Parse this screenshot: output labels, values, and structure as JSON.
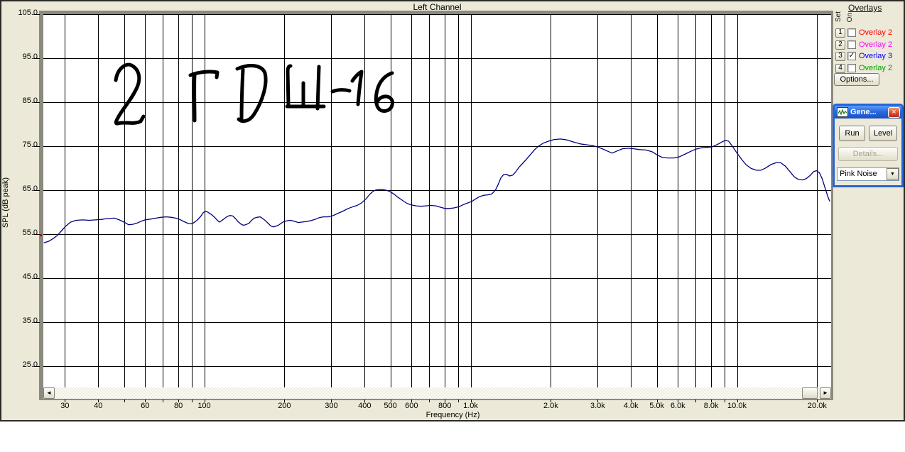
{
  "chart_data": {
    "type": "line",
    "title": "Left Channel",
    "xlabel": "Frequency (Hz)",
    "ylabel": "SPL (dB peak)",
    "x_scale": "log",
    "x_range_hz": [
      25,
      22500
    ],
    "y_visible_range_db": [
      20,
      105
    ],
    "grid": true,
    "y_ticks": [
      {
        "db": 105,
        "label": "105.0"
      },
      {
        "db": 95,
        "label": "95.0"
      },
      {
        "db": 85,
        "label": "85.0"
      },
      {
        "db": 75,
        "label": "75.0"
      },
      {
        "db": 65,
        "label": "65.0"
      },
      {
        "db": 55,
        "label": "55.0"
      },
      {
        "db": 45,
        "label": "45.0"
      },
      {
        "db": 35,
        "label": "35.0"
      },
      {
        "db": 25,
        "label": "25.0"
      }
    ],
    "grid_freqs_hz": [
      30,
      40,
      50,
      60,
      70,
      80,
      90,
      100,
      200,
      300,
      400,
      500,
      600,
      700,
      800,
      900,
      1000,
      2000,
      3000,
      4000,
      5000,
      6000,
      7000,
      8000,
      9000,
      10000,
      20000
    ],
    "x_tick_labels": [
      {
        "hz": 30,
        "label": "30"
      },
      {
        "hz": 40,
        "label": "40"
      },
      {
        "hz": 60,
        "label": "60"
      },
      {
        "hz": 80,
        "label": "80"
      },
      {
        "hz": 100,
        "label": "100"
      },
      {
        "hz": 200,
        "label": "200"
      },
      {
        "hz": 300,
        "label": "300"
      },
      {
        "hz": 400,
        "label": "400"
      },
      {
        "hz": 500,
        "label": "500"
      },
      {
        "hz": 600,
        "label": "600"
      },
      {
        "hz": 800,
        "label": "800"
      },
      {
        "hz": 1000,
        "label": "1.0k"
      },
      {
        "hz": 2000,
        "label": "2.0k"
      },
      {
        "hz": 3000,
        "label": "3.0k"
      },
      {
        "hz": 4000,
        "label": "4.0k"
      },
      {
        "hz": 5000,
        "label": "5.0k"
      },
      {
        "hz": 6000,
        "label": "6.0k"
      },
      {
        "hz": 8000,
        "label": "8.0k"
      },
      {
        "hz": 10000,
        "label": "10.0k"
      },
      {
        "hz": 20000,
        "label": "20.0k"
      }
    ],
    "annotation": {
      "text": "2 ГДШ-16"
    },
    "series": [
      {
        "name": "Left Channel (Overlay 3)",
        "color": "#000080",
        "points_hz_db": [
          [
            25,
            53.0
          ],
          [
            26,
            53.3
          ],
          [
            27,
            53.9
          ],
          [
            28,
            54.6
          ],
          [
            29,
            55.6
          ],
          [
            30,
            56.6
          ],
          [
            31.5,
            57.7
          ],
          [
            33,
            58.1
          ],
          [
            35,
            58.2
          ],
          [
            37,
            58.1
          ],
          [
            39,
            58.2
          ],
          [
            41,
            58.3
          ],
          [
            43,
            58.5
          ],
          [
            46,
            58.6
          ],
          [
            48,
            58.2
          ],
          [
            50,
            57.7
          ],
          [
            52,
            57.1
          ],
          [
            54,
            57.2
          ],
          [
            56,
            57.5
          ],
          [
            58,
            57.9
          ],
          [
            60,
            58.2
          ],
          [
            63,
            58.4
          ],
          [
            66,
            58.6
          ],
          [
            69,
            58.8
          ],
          [
            72,
            58.9
          ],
          [
            75,
            58.8
          ],
          [
            78,
            58.6
          ],
          [
            81,
            58.3
          ],
          [
            84,
            57.8
          ],
          [
            87,
            57.4
          ],
          [
            89,
            57.3
          ],
          [
            91,
            57.5
          ],
          [
            94,
            58.1
          ],
          [
            97,
            59.0
          ],
          [
            99,
            59.8
          ],
          [
            101,
            60.2
          ],
          [
            103,
            60.0
          ],
          [
            106,
            59.5
          ],
          [
            109,
            58.9
          ],
          [
            112,
            58.1
          ],
          [
            114,
            57.7
          ],
          [
            116,
            58.0
          ],
          [
            119,
            58.5
          ],
          [
            122,
            59.0
          ],
          [
            125,
            59.2
          ],
          [
            128,
            59.1
          ],
          [
            131,
            58.5
          ],
          [
            134,
            57.8
          ],
          [
            137,
            57.3
          ],
          [
            140,
            57.0
          ],
          [
            143,
            57.1
          ],
          [
            147,
            57.4
          ],
          [
            150,
            58.0
          ],
          [
            154,
            58.6
          ],
          [
            158,
            58.8
          ],
          [
            162,
            58.9
          ],
          [
            166,
            58.5
          ],
          [
            170,
            58.0
          ],
          [
            174,
            57.4
          ],
          [
            178,
            56.8
          ],
          [
            182,
            56.6
          ],
          [
            186,
            56.8
          ],
          [
            190,
            57.0
          ],
          [
            195,
            57.5
          ],
          [
            200,
            57.9
          ],
          [
            205,
            58.0
          ],
          [
            210,
            58.1
          ],
          [
            215,
            58.0
          ],
          [
            220,
            57.8
          ],
          [
            226,
            57.6
          ],
          [
            232,
            57.7
          ],
          [
            240,
            57.8
          ],
          [
            250,
            58.0
          ],
          [
            260,
            58.3
          ],
          [
            270,
            58.7
          ],
          [
            280,
            58.9
          ],
          [
            292,
            58.9
          ],
          [
            305,
            59.2
          ],
          [
            318,
            59.7
          ],
          [
            332,
            60.2
          ],
          [
            347,
            60.8
          ],
          [
            362,
            61.2
          ],
          [
            375,
            61.5
          ],
          [
            390,
            62.1
          ],
          [
            405,
            63.0
          ],
          [
            418,
            64.0
          ],
          [
            430,
            64.7
          ],
          [
            440,
            65.0
          ],
          [
            455,
            65.1
          ],
          [
            470,
            65.1
          ],
          [
            485,
            64.9
          ],
          [
            500,
            64.6
          ],
          [
            515,
            64.1
          ],
          [
            532,
            63.4
          ],
          [
            550,
            62.8
          ],
          [
            565,
            62.3
          ],
          [
            580,
            61.9
          ],
          [
            600,
            61.6
          ],
          [
            625,
            61.4
          ],
          [
            650,
            61.3
          ],
          [
            680,
            61.4
          ],
          [
            710,
            61.5
          ],
          [
            740,
            61.4
          ],
          [
            770,
            61.1
          ],
          [
            800,
            60.8
          ],
          [
            830,
            60.8
          ],
          [
            860,
            60.9
          ],
          [
            890,
            61.1
          ],
          [
            920,
            61.4
          ],
          [
            950,
            61.8
          ],
          [
            980,
            62.1
          ],
          [
            1010,
            62.4
          ],
          [
            1045,
            63.0
          ],
          [
            1080,
            63.5
          ],
          [
            1120,
            63.8
          ],
          [
            1160,
            63.9
          ],
          [
            1200,
            64.1
          ],
          [
            1240,
            65.0
          ],
          [
            1270,
            66.3
          ],
          [
            1300,
            67.8
          ],
          [
            1330,
            68.5
          ],
          [
            1360,
            68.6
          ],
          [
            1400,
            68.2
          ],
          [
            1440,
            68.4
          ],
          [
            1480,
            69.2
          ],
          [
            1520,
            70.2
          ],
          [
            1570,
            71.1
          ],
          [
            1620,
            72.0
          ],
          [
            1680,
            73.1
          ],
          [
            1740,
            74.2
          ],
          [
            1800,
            75.0
          ],
          [
            1880,
            75.7
          ],
          [
            1960,
            76.1
          ],
          [
            2060,
            76.5
          ],
          [
            2180,
            76.6
          ],
          [
            2300,
            76.4
          ],
          [
            2440,
            75.9
          ],
          [
            2580,
            75.5
          ],
          [
            2720,
            75.3
          ],
          [
            2870,
            75.1
          ],
          [
            3000,
            74.8
          ],
          [
            3120,
            74.4
          ],
          [
            3250,
            73.9
          ],
          [
            3400,
            73.4
          ],
          [
            3550,
            73.9
          ],
          [
            3720,
            74.4
          ],
          [
            3900,
            74.5
          ],
          [
            4100,
            74.4
          ],
          [
            4300,
            74.2
          ],
          [
            4550,
            74.1
          ],
          [
            4800,
            73.7
          ],
          [
            5050,
            72.9
          ],
          [
            5250,
            72.4
          ],
          [
            5500,
            72.3
          ],
          [
            5800,
            72.3
          ],
          [
            6100,
            72.6
          ],
          [
            6400,
            73.2
          ],
          [
            6700,
            73.8
          ],
          [
            7000,
            74.3
          ],
          [
            7350,
            74.6
          ],
          [
            7700,
            74.7
          ],
          [
            8050,
            74.8
          ],
          [
            8400,
            75.3
          ],
          [
            8750,
            75.9
          ],
          [
            9050,
            76.3
          ],
          [
            9300,
            76.1
          ],
          [
            9600,
            75.0
          ],
          [
            10000,
            73.4
          ],
          [
            10400,
            72.0
          ],
          [
            10800,
            70.8
          ],
          [
            11300,
            69.9
          ],
          [
            11800,
            69.5
          ],
          [
            12300,
            69.5
          ],
          [
            12800,
            70.0
          ],
          [
            13400,
            70.8
          ],
          [
            14000,
            71.2
          ],
          [
            14600,
            71.2
          ],
          [
            15200,
            70.4
          ],
          [
            15800,
            69.2
          ],
          [
            16400,
            68.0
          ],
          [
            17000,
            67.4
          ],
          [
            17600,
            67.3
          ],
          [
            18200,
            67.6
          ],
          [
            18800,
            68.3
          ],
          [
            19400,
            69.2
          ],
          [
            19900,
            69.4
          ],
          [
            20400,
            68.9
          ],
          [
            20900,
            67.5
          ],
          [
            21400,
            65.5
          ],
          [
            21900,
            63.6
          ],
          [
            22300,
            62.4
          ]
        ]
      }
    ]
  },
  "overlays_panel": {
    "title": "Overlays",
    "col_set": "Set",
    "col_on": "On",
    "rows": [
      {
        "num": "1",
        "label": "Overlay 2",
        "color": "#ff0000",
        "checked": false
      },
      {
        "num": "2",
        "label": "Overlay 2",
        "color": "#ff00ff",
        "checked": false
      },
      {
        "num": "3",
        "label": "Overlay 3",
        "color": "#0000ff",
        "checked": true
      },
      {
        "num": "4",
        "label": "Overlay 2",
        "color": "#00a000",
        "checked": false
      }
    ],
    "options_label": "Options..."
  },
  "generator": {
    "title": "Gene...",
    "run_label": "Run",
    "level_label": "Level",
    "details_label": "Details...",
    "noise_value": "Pink Noise"
  },
  "icons": {
    "scroll_left": "◄",
    "scroll_right": "►",
    "close": "×",
    "combo_arrow": "▼",
    "check": "✓"
  },
  "colors": {
    "background": "#ece9d8",
    "plot_bg": "#ffffff",
    "grid": "#000000",
    "curve": "#000080",
    "titlebar_blue": "#2a6be0"
  }
}
